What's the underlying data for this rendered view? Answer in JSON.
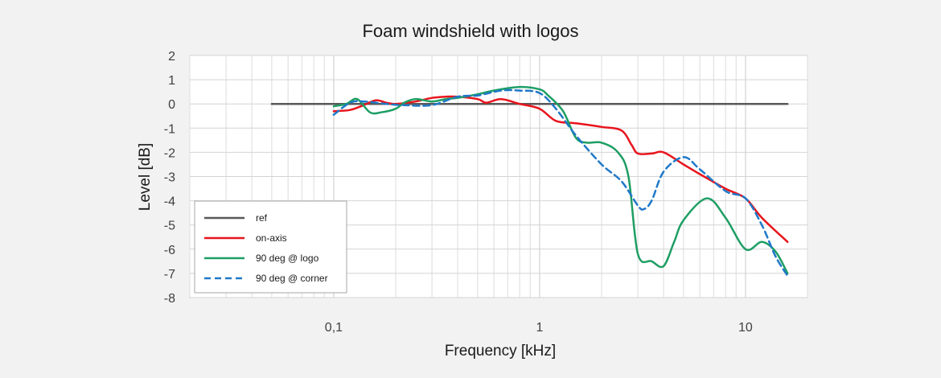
{
  "chart_data": {
    "type": "line",
    "title": "Foam windshield with logos",
    "xlabel": "Frequency [kHz]",
    "ylabel": "Level [dB]",
    "x_scale": "log",
    "xlim": [
      0.02,
      20
    ],
    "ylim": [
      -8,
      2
    ],
    "x_tick_values": [
      0.1,
      1,
      10
    ],
    "x_tick_labels": [
      "0,1",
      "1",
      "10"
    ],
    "y_ticks": [
      2,
      1,
      0,
      -1,
      -2,
      -3,
      -4,
      -5,
      -6,
      -7,
      -8
    ],
    "grid": true,
    "legend_position": "bottom-left",
    "series": [
      {
        "name": "ref",
        "color": "#595959",
        "dash": "solid",
        "x": [
          0.05,
          16
        ],
        "y": [
          0,
          0
        ]
      },
      {
        "name": "on-axis",
        "color": "#e8141c",
        "dash": "solid",
        "x": [
          0.1,
          0.12,
          0.14,
          0.16,
          0.18,
          0.2,
          0.25,
          0.3,
          0.35,
          0.4,
          0.5,
          0.55,
          0.65,
          0.8,
          1.0,
          1.2,
          1.5,
          2.0,
          2.5,
          2.8,
          3.0,
          3.5,
          4.0,
          5.0,
          6.0,
          8.0,
          10.0,
          12.0,
          16.0
        ],
        "y": [
          -0.3,
          -0.25,
          -0.05,
          0.15,
          0.05,
          0.0,
          0.1,
          0.25,
          0.3,
          0.3,
          0.2,
          0.05,
          0.2,
          0.0,
          -0.2,
          -0.7,
          -0.8,
          -0.95,
          -1.1,
          -1.7,
          -2.05,
          -2.05,
          -2.0,
          -2.5,
          -2.9,
          -3.5,
          -3.9,
          -4.7,
          -5.7
        ]
      },
      {
        "name": "90 deg @ logo",
        "color": "#1e9e64",
        "dash": "solid",
        "x": [
          0.1,
          0.115,
          0.13,
          0.15,
          0.17,
          0.2,
          0.22,
          0.25,
          0.3,
          0.35,
          0.4,
          0.5,
          0.6,
          0.8,
          1.0,
          1.1,
          1.3,
          1.5,
          1.7,
          2.0,
          2.4,
          2.7,
          3.0,
          3.5,
          4.0,
          4.5,
          5.0,
          6.5,
          8.0,
          10.0,
          12.0,
          14.0,
          16.0
        ],
        "y": [
          -0.1,
          0.0,
          0.2,
          -0.35,
          -0.35,
          -0.2,
          0.05,
          0.2,
          0.1,
          0.2,
          0.25,
          0.4,
          0.55,
          0.7,
          0.6,
          0.35,
          -0.3,
          -1.4,
          -1.6,
          -1.6,
          -2.0,
          -3.0,
          -6.2,
          -6.5,
          -6.7,
          -5.7,
          -4.8,
          -3.9,
          -4.7,
          -6.0,
          -5.7,
          -6.1,
          -7.0
        ]
      },
      {
        "name": "90 deg @ corner",
        "color": "#1f78c8",
        "dash": "dashed",
        "x": [
          0.1,
          0.12,
          0.14,
          0.18,
          0.22,
          0.3,
          0.4,
          0.5,
          0.65,
          0.8,
          1.0,
          1.2,
          1.5,
          2.0,
          2.5,
          3.0,
          3.2,
          3.5,
          4.0,
          5.0,
          6.0,
          8.0,
          10.0,
          12.0,
          14.0,
          16.0
        ],
        "y": [
          -0.45,
          0.05,
          0.1,
          0.0,
          -0.05,
          -0.05,
          0.3,
          0.35,
          0.55,
          0.55,
          0.45,
          -0.2,
          -1.3,
          -2.5,
          -3.2,
          -4.2,
          -4.35,
          -4.0,
          -2.8,
          -2.2,
          -2.7,
          -3.6,
          -3.9,
          -5.0,
          -6.3,
          -7.1
        ]
      }
    ]
  }
}
